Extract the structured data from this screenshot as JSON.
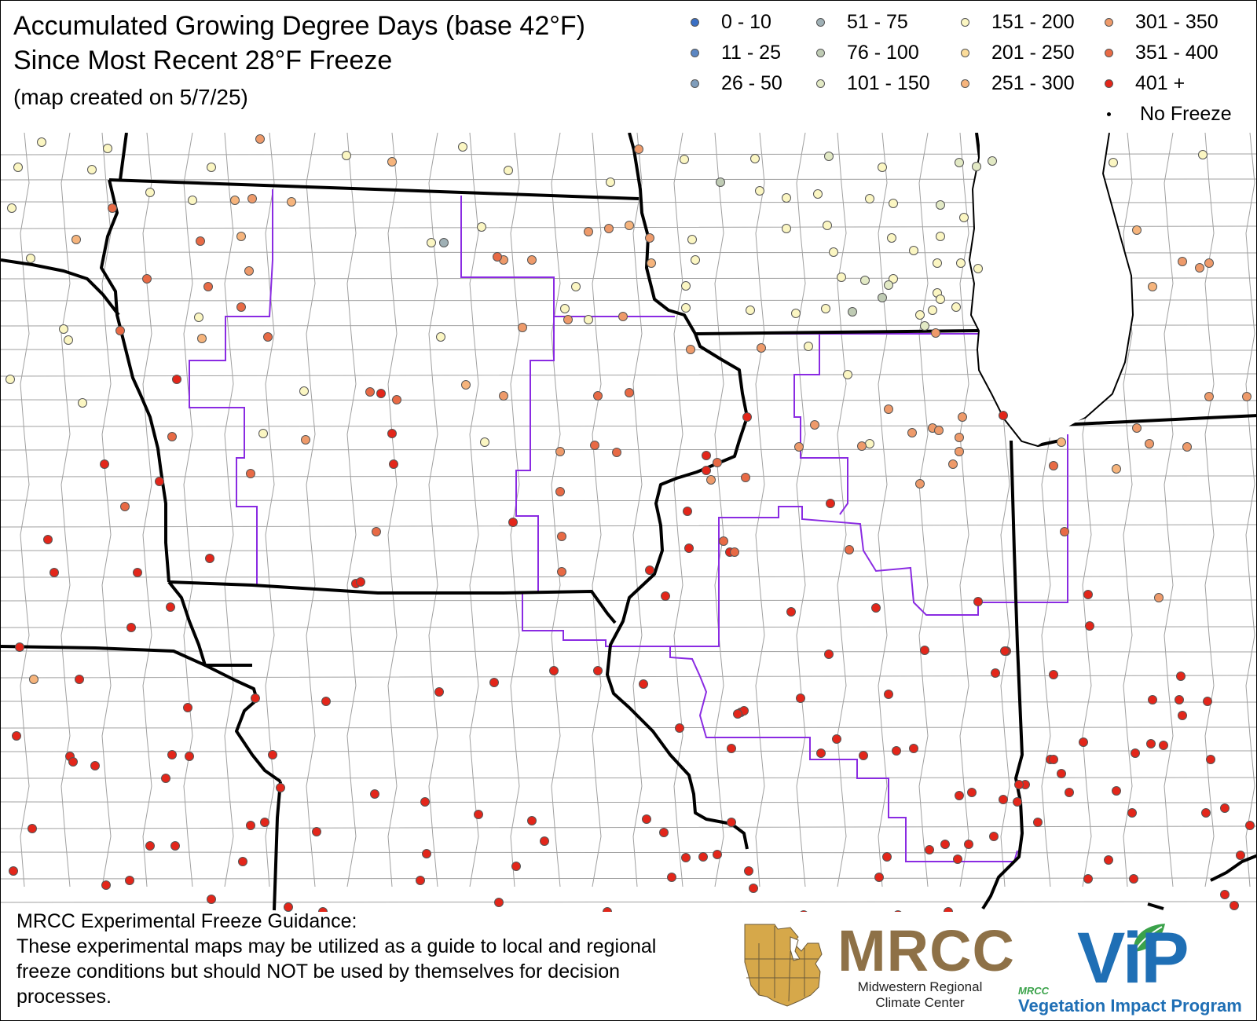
{
  "title": {
    "line1": "Accumulated Growing Degree Days (base 42°F)",
    "line2": "Since Most Recent 28°F Freeze",
    "created": "(map created on 5/7/25)"
  },
  "legend": [
    {
      "label": "0 - 10",
      "color": "#3a6fc4"
    },
    {
      "label": "11 - 25",
      "color": "#5b86c2"
    },
    {
      "label": "26 - 50",
      "color": "#7f9dbb"
    },
    {
      "label": "51 - 75",
      "color": "#9fb0b5"
    },
    {
      "label": "76 - 100",
      "color": "#bfcbb4"
    },
    {
      "label": "101 - 150",
      "color": "#e2e9c4"
    },
    {
      "label": "151 - 200",
      "color": "#fbf6c2"
    },
    {
      "label": "201 - 250",
      "color": "#fbdc9a"
    },
    {
      "label": "251 - 300",
      "color": "#f6b47c"
    },
    {
      "label": "301 - 350",
      "color": "#ee9a6a"
    },
    {
      "label": "351 - 400",
      "color": "#e86a45"
    },
    {
      "label": "401 +",
      "color": "#e3261a"
    },
    {
      "label": "No Freeze",
      "color": "#000000"
    }
  ],
  "disclaimer": {
    "heading": "MRCC Experimental Freeze Guidance:",
    "body": "These experimental maps may be utilized as a guide to local and regional freeze conditions but should NOT be used by themselves for decision processes."
  },
  "logos": {
    "mrcc_abbrev": "MRCC",
    "mrcc_name": "Midwestern Regional Climate Center",
    "vip_small": "MRCC",
    "vip_abbrev": "ViP",
    "vip_name": "Vegetation Impact Program"
  },
  "colors": {
    "state_border": "#000000",
    "county_border": "#9a9a9a",
    "climate_division": "#8a2be2"
  }
}
